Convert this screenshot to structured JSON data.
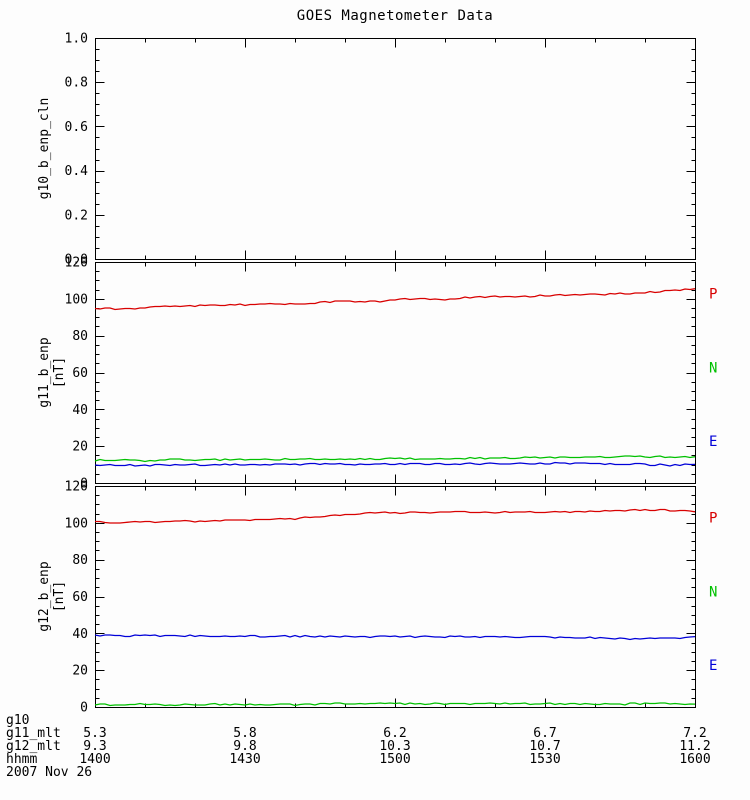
{
  "title": "GOES Magnetometer Data",
  "date_label": "2007 Nov 26",
  "colors": {
    "axis": "#000000",
    "background": "#fdfdfd",
    "red": "#d80000",
    "green": "#00c000",
    "blue": "#0000d8"
  },
  "bottom_rows": [
    {
      "label": "g10",
      "values": [
        "",
        "",
        "",
        "",
        ""
      ]
    },
    {
      "label": "g11_mlt",
      "values": [
        "5.3",
        "5.8",
        "6.2",
        "6.7",
        "7.2"
      ]
    },
    {
      "label": "g12_mlt",
      "values": [
        "9.3",
        "9.8",
        "10.3",
        "10.7",
        "11.2"
      ]
    },
    {
      "label": "hhmm",
      "values": [
        "1400",
        "1430",
        "1500",
        "1530",
        "1600"
      ]
    }
  ],
  "chart_data": [
    {
      "type": "line",
      "panel_id": "g10",
      "ylabel": "g10_b_enp_cln",
      "ylabel_units": "",
      "ylim": [
        0.0,
        1.0
      ],
      "ymajor": 0.2,
      "yminor": 0.05,
      "ytick_labels": [
        "0.0",
        "0.2",
        "0.4",
        "0.6",
        "0.8",
        "1.0"
      ],
      "xlim_minutes": [
        0,
        120
      ],
      "xmajor_minutes": 30,
      "xminor_minutes": 10,
      "xtick_labels_hhmm": [
        "1400",
        "1430",
        "1500",
        "1530",
        "1600"
      ],
      "grid": false,
      "right_labels": [],
      "series": []
    },
    {
      "type": "line",
      "panel_id": "g11",
      "ylabel": "g11_b_enp",
      "ylabel_units": "[nT]",
      "ylim": [
        0,
        120
      ],
      "ymajor": 20,
      "yminor": 5,
      "ytick_labels": [
        "0",
        "20",
        "40",
        "60",
        "80",
        "100",
        "120"
      ],
      "xlim_minutes": [
        0,
        120
      ],
      "xmajor_minutes": 30,
      "xminor_minutes": 10,
      "xtick_labels_hhmm": [
        "1400",
        "1430",
        "1500",
        "1530",
        "1600"
      ],
      "grid": false,
      "right_labels": [
        {
          "text": "P",
          "color": "#d80000",
          "at_value": 102.5
        },
        {
          "text": "N",
          "color": "#00c000",
          "at_value": 62.5
        },
        {
          "text": "E",
          "color": "#0000d8",
          "at_value": 22.5
        }
      ],
      "x_minutes": [
        0,
        5,
        10,
        15,
        20,
        25,
        30,
        35,
        40,
        45,
        50,
        55,
        60,
        65,
        70,
        75,
        80,
        85,
        90,
        95,
        100,
        105,
        110,
        115,
        120
      ],
      "series": [
        {
          "name": "P",
          "color": "#d80000",
          "values": [
            94.8,
            94.5,
            95.3,
            96.0,
            96.3,
            96.5,
            96.9,
            97.2,
            97.1,
            98.0,
            98.8,
            98.3,
            99.5,
            100.1,
            99.7,
            100.8,
            101.1,
            101.0,
            101.7,
            102.1,
            102.4,
            102.8,
            103.3,
            104.6,
            105.5
          ]
        },
        {
          "name": "E",
          "color": "#0000d8",
          "values": [
            9.6,
            9.8,
            9.5,
            9.9,
            10.0,
            9.8,
            10.1,
            10.0,
            10.2,
            10.1,
            10.3,
            10.2,
            10.4,
            10.3,
            10.5,
            10.4,
            10.6,
            10.5,
            10.7,
            10.6,
            10.5,
            10.3,
            10.0,
            9.7,
            10.1
          ]
        },
        {
          "name": "N",
          "color": "#00c000",
          "values": [
            12.3,
            12.5,
            12.2,
            12.6,
            12.5,
            12.7,
            12.8,
            12.7,
            12.9,
            13.0,
            13.1,
            13.0,
            13.2,
            13.3,
            13.4,
            13.3,
            13.5,
            13.6,
            13.8,
            13.9,
            14.0,
            14.2,
            14.3,
            14.4,
            14.3
          ]
        }
      ]
    },
    {
      "type": "line",
      "panel_id": "g12",
      "ylabel": "g12_b_enp",
      "ylabel_units": "[nT]",
      "ylim": [
        0,
        120
      ],
      "ymajor": 20,
      "yminor": 5,
      "ytick_labels": [
        "0",
        "20",
        "40",
        "60",
        "80",
        "100",
        "120"
      ],
      "xlim_minutes": [
        0,
        120
      ],
      "xmajor_minutes": 30,
      "xminor_minutes": 10,
      "xtick_labels_hhmm": [
        "1400",
        "1430",
        "1500",
        "1530",
        "1600"
      ],
      "grid": false,
      "right_labels": [
        {
          "text": "P",
          "color": "#d80000",
          "at_value": 102.5
        },
        {
          "text": "N",
          "color": "#00c000",
          "at_value": 62.5
        },
        {
          "text": "E",
          "color": "#0000d8",
          "at_value": 22.5
        }
      ],
      "x_minutes": [
        0,
        5,
        10,
        15,
        20,
        25,
        30,
        35,
        40,
        45,
        50,
        55,
        60,
        65,
        70,
        75,
        80,
        85,
        90,
        95,
        100,
        105,
        110,
        115,
        120
      ],
      "series": [
        {
          "name": "P",
          "color": "#d80000",
          "values": [
            100.5,
            100.2,
            100.4,
            100.6,
            100.9,
            101.2,
            101.6,
            101.9,
            102.3,
            103.2,
            104.4,
            105.3,
            105.6,
            105.4,
            105.7,
            105.9,
            105.7,
            106.1,
            106.0,
            105.8,
            106.2,
            106.5,
            107.0,
            106.8,
            106.0
          ]
        },
        {
          "name": "E",
          "color": "#0000d8",
          "values": [
            38.8,
            38.7,
            38.8,
            38.6,
            38.7,
            38.5,
            38.6,
            38.4,
            38.5,
            38.3,
            38.4,
            38.2,
            38.3,
            38.1,
            38.2,
            38.0,
            38.1,
            37.9,
            38.0,
            37.8,
            37.6,
            37.2,
            37.0,
            37.3,
            38.2
          ]
        },
        {
          "name": "N",
          "color": "#00c000",
          "values": [
            1.3,
            1.2,
            1.4,
            1.2,
            1.3,
            1.5,
            1.3,
            1.4,
            1.2,
            1.6,
            2.0,
            1.8,
            1.9,
            1.7,
            1.8,
            1.6,
            1.9,
            1.7,
            1.8,
            1.6,
            1.7,
            1.5,
            1.8,
            1.7,
            1.6
          ]
        }
      ]
    }
  ]
}
